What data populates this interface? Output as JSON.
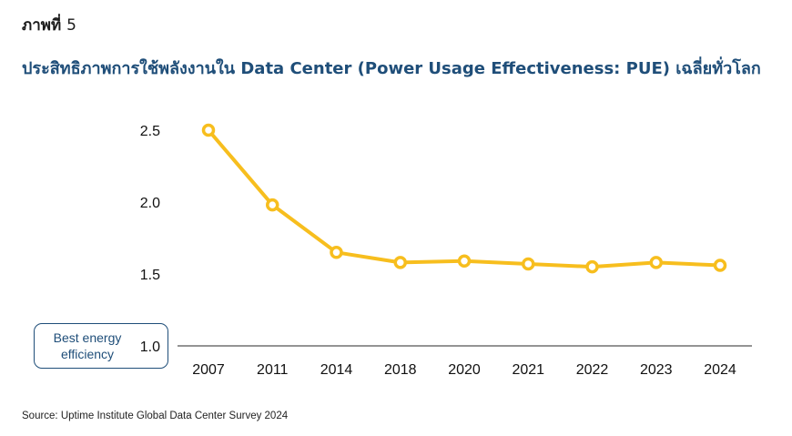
{
  "figure": {
    "label": "ภาพที่",
    "number": "5"
  },
  "colors": {
    "line": "#F7BE1E",
    "axis": "#555555",
    "title": "#1F4E79"
  },
  "chart_data": {
    "type": "line",
    "title": "ประสิทธิภาพการใช้พลังงานใน Data Center (Power Usage Effectiveness: PUE) เฉลี่ยทั่วโลก",
    "xlabel": "",
    "ylabel": "",
    "categories": [
      "2007",
      "2011",
      "2014",
      "2018",
      "2020",
      "2021",
      "2022",
      "2023",
      "2024"
    ],
    "series": [
      {
        "values": [
          2.5,
          1.98,
          1.65,
          1.58,
          1.59,
          1.57,
          1.55,
          1.58,
          1.56
        ]
      }
    ],
    "ylim": [
      1.0,
      2.5
    ],
    "yticks": [
      "1.0",
      "1.5",
      "2.0",
      "2.5"
    ],
    "grid": false,
    "annotations": [
      {
        "text": "Best energy efficiency",
        "target_y": 1.0
      }
    ]
  },
  "source": "Source: Uptime Institute Global Data Center Survey 2024"
}
